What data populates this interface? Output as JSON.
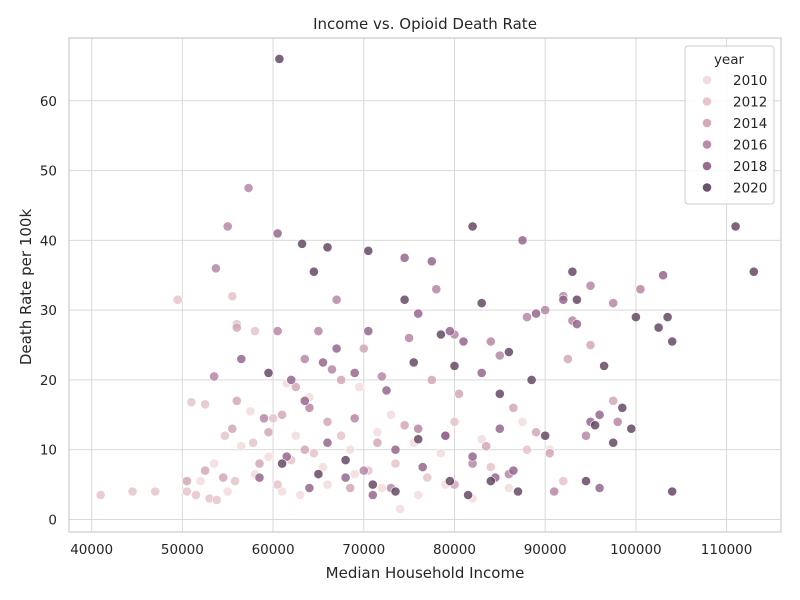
{
  "chart_data": {
    "type": "scatter",
    "title": "Income vs. Opioid Death Rate",
    "xlabel": "Median Household Income",
    "ylabel": "Death Rate per 100k",
    "xlim": [
      37500,
      116000
    ],
    "ylim": [
      -1.8,
      69
    ],
    "x_ticks": [
      40000,
      50000,
      60000,
      70000,
      80000,
      90000,
      100000,
      110000
    ],
    "y_ticks": [
      0,
      10,
      20,
      30,
      40,
      50,
      60
    ],
    "grid": true,
    "legend": {
      "title": "year",
      "placement": "top-right",
      "entries": [
        {
          "label": "2010",
          "color": "#f1dada"
        },
        {
          "label": "2012",
          "color": "#e3c0c5"
        },
        {
          "label": "2014",
          "color": "#cfa1b2"
        },
        {
          "label": "2016",
          "color": "#b180a0"
        },
        {
          "label": "2018",
          "color": "#8e5e87"
        },
        {
          "label": "2020",
          "color": "#5b3e5b"
        }
      ]
    },
    "series": [
      {
        "name": "2010",
        "color": "#f1dada",
        "points": [
          [
            52000,
            5.5
          ],
          [
            55000,
            4
          ],
          [
            58000,
            6.5
          ],
          [
            61000,
            4
          ],
          [
            63000,
            3.5
          ],
          [
            66000,
            5
          ],
          [
            69000,
            6.5
          ],
          [
            72000,
            4.5
          ],
          [
            74000,
            1.5
          ],
          [
            76000,
            3.5
          ],
          [
            79000,
            5
          ],
          [
            82000,
            3
          ],
          [
            86000,
            4.5
          ],
          [
            53500,
            8
          ],
          [
            56500,
            10.5
          ],
          [
            59500,
            9
          ],
          [
            62500,
            12
          ],
          [
            65500,
            7.5
          ],
          [
            68500,
            10
          ],
          [
            71500,
            12.5
          ],
          [
            75500,
            11
          ],
          [
            78500,
            9.5
          ],
          [
            83000,
            11.5
          ],
          [
            87500,
            14
          ],
          [
            61500,
            19.5
          ],
          [
            69500,
            19
          ],
          [
            73000,
            15
          ],
          [
            57500,
            15.5
          ],
          [
            64000,
            17.5
          ],
          [
            90500,
            10
          ]
        ]
      },
      {
        "name": "2012",
        "color": "#e3c0c5",
        "points": [
          [
            41000,
            3.5
          ],
          [
            44500,
            4
          ],
          [
            47000,
            4
          ],
          [
            50500,
            4
          ],
          [
            51500,
            3.5
          ],
          [
            53000,
            3
          ],
          [
            53800,
            2.8
          ],
          [
            55500,
            32
          ],
          [
            49500,
            31.5
          ],
          [
            56000,
            28
          ],
          [
            58000,
            27
          ],
          [
            55800,
            5.5
          ],
          [
            54700,
            12
          ],
          [
            52500,
            16.5
          ],
          [
            51000,
            16.8
          ],
          [
            57800,
            11
          ],
          [
            60500,
            5
          ],
          [
            62000,
            8.5
          ],
          [
            64500,
            9.5
          ],
          [
            67500,
            12
          ],
          [
            70500,
            7
          ],
          [
            73500,
            8
          ],
          [
            77000,
            6
          ],
          [
            80000,
            14
          ],
          [
            84000,
            7.5
          ],
          [
            88000,
            10
          ],
          [
            92000,
            5.5
          ],
          [
            60000,
            14.5
          ]
        ]
      },
      {
        "name": "2014",
        "color": "#cfa1b2",
        "points": [
          [
            50500,
            5.5
          ],
          [
            52500,
            7
          ],
          [
            54500,
            6
          ],
          [
            55500,
            13
          ],
          [
            56000,
            17
          ],
          [
            58500,
            8
          ],
          [
            59500,
            12.5
          ],
          [
            61000,
            15
          ],
          [
            63500,
            10
          ],
          [
            66000,
            14
          ],
          [
            67500,
            20
          ],
          [
            70000,
            24.5
          ],
          [
            71500,
            11
          ],
          [
            74500,
            13.5
          ],
          [
            77500,
            20
          ],
          [
            80500,
            18
          ],
          [
            83500,
            10.5
          ],
          [
            86500,
            16
          ],
          [
            89000,
            12.5
          ],
          [
            92500,
            23
          ],
          [
            95000,
            25
          ],
          [
            97500,
            17
          ],
          [
            56000,
            27.5
          ],
          [
            62500,
            19
          ],
          [
            68500,
            4.5
          ],
          [
            80000,
            5
          ],
          [
            90500,
            9.5
          ]
        ]
      },
      {
        "name": "2016",
        "color": "#b180a0",
        "points": [
          [
            53500,
            20.5
          ],
          [
            55000,
            42
          ],
          [
            53700,
            36
          ],
          [
            57300,
            47.5
          ],
          [
            60500,
            27
          ],
          [
            63500,
            23
          ],
          [
            65000,
            27
          ],
          [
            67000,
            31.5
          ],
          [
            69000,
            14.5
          ],
          [
            72000,
            20.5
          ],
          [
            75000,
            26
          ],
          [
            78000,
            33
          ],
          [
            80000,
            26.5
          ],
          [
            84000,
            25.5
          ],
          [
            85000,
            23.5
          ],
          [
            88000,
            29
          ],
          [
            90000,
            30
          ],
          [
            92000,
            32
          ],
          [
            93000,
            28.5
          ],
          [
            95000,
            33.5
          ],
          [
            97500,
            31
          ],
          [
            100500,
            33
          ],
          [
            59000,
            14.5
          ],
          [
            64000,
            16
          ],
          [
            66500,
            21.5
          ],
          [
            70000,
            7
          ],
          [
            73000,
            4.5
          ],
          [
            76000,
            13
          ],
          [
            79000,
            12
          ],
          [
            82000,
            8
          ],
          [
            86000,
            6.5
          ],
          [
            91000,
            4
          ],
          [
            94500,
            12
          ],
          [
            98000,
            14
          ]
        ]
      },
      {
        "name": "2018",
        "color": "#8e5e87",
        "points": [
          [
            56500,
            23
          ],
          [
            60500,
            41
          ],
          [
            62000,
            20
          ],
          [
            63500,
            17
          ],
          [
            65500,
            22.5
          ],
          [
            67000,
            24.5
          ],
          [
            69000,
            21
          ],
          [
            70500,
            27
          ],
          [
            72500,
            18.5
          ],
          [
            74500,
            37.5
          ],
          [
            76000,
            29.5
          ],
          [
            77500,
            37
          ],
          [
            79500,
            27
          ],
          [
            81000,
            25.5
          ],
          [
            83000,
            21
          ],
          [
            85000,
            13
          ],
          [
            87500,
            40
          ],
          [
            89000,
            29.5
          ],
          [
            92000,
            31.5
          ],
          [
            93500,
            28
          ],
          [
            95000,
            14
          ],
          [
            96000,
            15
          ],
          [
            103000,
            35
          ],
          [
            58500,
            6
          ],
          [
            61500,
            9
          ],
          [
            64000,
            4.5
          ],
          [
            66000,
            11
          ],
          [
            68000,
            6
          ],
          [
            71000,
            3.5
          ],
          [
            73500,
            10
          ],
          [
            76500,
            7.5
          ],
          [
            79000,
            12
          ],
          [
            82000,
            9
          ],
          [
            84500,
            6
          ],
          [
            86500,
            7
          ],
          [
            96000,
            4.5
          ]
        ]
      },
      {
        "name": "2020",
        "color": "#5b3e5b",
        "points": [
          [
            60700,
            66
          ],
          [
            59500,
            21
          ],
          [
            64500,
            35.5
          ],
          [
            63200,
            39.5
          ],
          [
            66000,
            39
          ],
          [
            70500,
            38.5
          ],
          [
            74500,
            31.5
          ],
          [
            75500,
            22.5
          ],
          [
            78500,
            26.5
          ],
          [
            80000,
            22
          ],
          [
            82000,
            42
          ],
          [
            83000,
            31
          ],
          [
            85000,
            18
          ],
          [
            86000,
            24
          ],
          [
            88500,
            20
          ],
          [
            93000,
            35.5
          ],
          [
            93500,
            31.5
          ],
          [
            95500,
            13.5
          ],
          [
            96500,
            22
          ],
          [
            99500,
            13
          ],
          [
            100000,
            29
          ],
          [
            102500,
            27.5
          ],
          [
            103500,
            29
          ],
          [
            104000,
            25.5
          ],
          [
            104000,
            4
          ],
          [
            111000,
            42
          ],
          [
            113000,
            35.5
          ],
          [
            61000,
            8
          ],
          [
            65000,
            6.5
          ],
          [
            68000,
            8.5
          ],
          [
            71000,
            5
          ],
          [
            73500,
            4
          ],
          [
            76000,
            11.5
          ],
          [
            79500,
            5.5
          ],
          [
            81500,
            3.5
          ],
          [
            84000,
            5.5
          ],
          [
            87000,
            4
          ],
          [
            90000,
            12
          ],
          [
            94500,
            5.5
          ],
          [
            97500,
            11
          ],
          [
            98500,
            16
          ]
        ]
      }
    ]
  }
}
